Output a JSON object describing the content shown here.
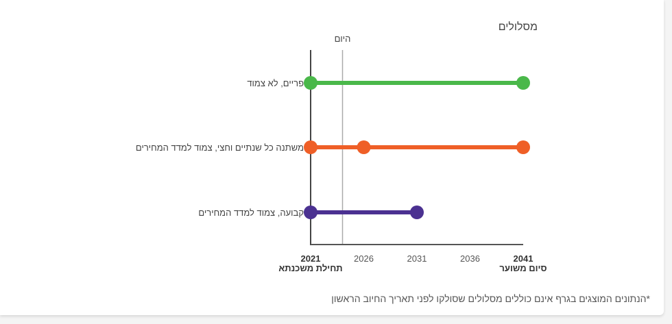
{
  "chart_data": {
    "type": "timeline",
    "title": "מסלולים",
    "xlim": [
      2021,
      2041
    ],
    "x_ticks": [
      2021,
      2026,
      2031,
      2036,
      2041
    ],
    "x_tick_sublabels": {
      "2021": "תחילת משכנתא",
      "2041": "סיום משוער"
    },
    "today": {
      "label": "היום",
      "x": 2024
    },
    "series": [
      {
        "name": "פריים, לא צמוד",
        "color": "#4ab84a",
        "points": [
          2021,
          2041
        ]
      },
      {
        "name": "משתנה כל שנתיים וחצי, צמוד למדד המחירים",
        "color": "#ef5f27",
        "points": [
          2021,
          2026,
          2041
        ]
      },
      {
        "name": "קבועה, צמוד למדד המחירים",
        "color": "#4b3191",
        "points": [
          2021,
          2031
        ]
      }
    ]
  },
  "footnote": "*הנתונים המוצגים בגרף אינם כוללים מסלולים שסולקו לפני תאריך החיוב הראשון"
}
